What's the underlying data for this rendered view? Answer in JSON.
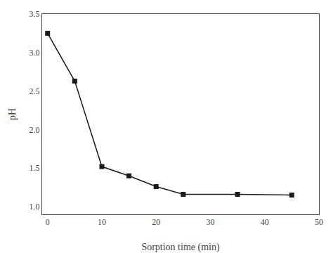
{
  "chart_data": {
    "type": "line",
    "x": [
      0,
      5,
      10,
      15,
      20,
      25,
      35,
      45
    ],
    "values": [
      3.25,
      2.63,
      1.52,
      1.4,
      1.26,
      1.16,
      1.16,
      1.15
    ],
    "xlabel": "Sorption time (min)",
    "ylabel": "pH",
    "xlim": [
      -1,
      50
    ],
    "ylim": [
      0.9,
      3.5
    ],
    "xticks": [
      0,
      10,
      20,
      30,
      40,
      50
    ],
    "yticks": [
      {
        "value": 1.0,
        "label": "1.0"
      },
      1.5,
      {
        "value": 2.0,
        "label": "2.0"
      },
      2.5,
      {
        "value": 3.0,
        "label": "3.0"
      },
      3.5
    ],
    "color": "#1a1a1a",
    "marker": "square",
    "grid": false
  }
}
